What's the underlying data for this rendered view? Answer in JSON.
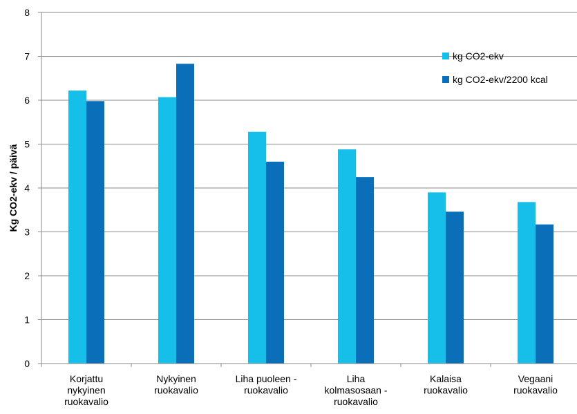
{
  "chart_data": {
    "type": "bar",
    "ylabel": "Kg CO2-ekv / päivä",
    "xlabel": "",
    "ylim": [
      0,
      8
    ],
    "yticks": [
      "0",
      "1",
      "2",
      "3",
      "4",
      "5",
      "6",
      "7",
      "8"
    ],
    "grid": true,
    "legend_position": "right",
    "categories": [
      [
        "Korjattu",
        "nykyinen",
        "ruokavalio"
      ],
      [
        "Nykyinen",
        "ruokavalio"
      ],
      [
        "Liha puoleen -",
        "ruokavalio"
      ],
      [
        "Liha",
        "kolmasosaan -",
        "ruokavalio"
      ],
      [
        "Kalaisa",
        "ruokavalio"
      ],
      [
        "Vegaani",
        "ruokavalio"
      ]
    ],
    "series": [
      {
        "name": "kg CO2-ekv",
        "color": "#16bfe9",
        "values": [
          6.22,
          6.07,
          5.28,
          4.88,
          3.9,
          3.68
        ]
      },
      {
        "name": "kg CO2-ekv/2200 kcal",
        "color": "#0a6fb8",
        "values": [
          5.98,
          6.83,
          4.6,
          4.25,
          3.46,
          3.17
        ]
      }
    ]
  }
}
